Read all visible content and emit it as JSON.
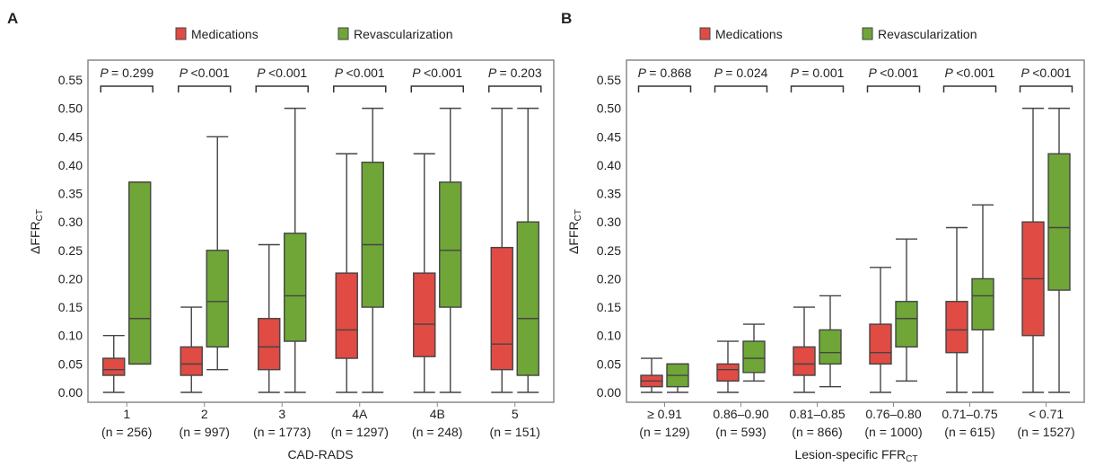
{
  "legend_labels": {
    "medications": "Medications",
    "revascularization": "Revascularization"
  },
  "colors": {
    "medications": "#e04b43",
    "revascularization": "#6fa637",
    "outline": "#444444",
    "frame": "#888888"
  },
  "chart_data": [
    {
      "panel": "A",
      "type": "box",
      "xlabel": "CAD-RADS",
      "ylabel": "ΔFFR",
      "ylabel_sub": "CT",
      "ylim": [
        0,
        0.55
      ],
      "yticks": [
        "0.00",
        "0.05",
        "0.10",
        "0.15",
        "0.20",
        "0.25",
        "0.30",
        "0.35",
        "0.40",
        "0.45",
        "0.50",
        "0.55"
      ],
      "legend": "top",
      "grid": false,
      "categories": [
        {
          "label": "1",
          "n": "(n = 256)",
          "p": "= 0.299"
        },
        {
          "label": "2",
          "n": "(n = 997)",
          "p": "<0.001"
        },
        {
          "label": "3",
          "n": "(n = 1773)",
          "p": "<0.001"
        },
        {
          "label": "4A",
          "n": "(n = 1297)",
          "p": "<0.001"
        },
        {
          "label": "4B",
          "n": "(n = 248)",
          "p": "<0.001"
        },
        {
          "label": "5",
          "n": "(n = 151)",
          "p": "= 0.203"
        }
      ],
      "series": [
        {
          "name": "Medications",
          "boxes": [
            {
              "min": 0.0,
              "q1": 0.03,
              "median": 0.04,
              "q3": 0.06,
              "max": 0.1
            },
            {
              "min": 0.0,
              "q1": 0.03,
              "median": 0.05,
              "q3": 0.08,
              "max": 0.15
            },
            {
              "min": 0.0,
              "q1": 0.04,
              "median": 0.08,
              "q3": 0.13,
              "max": 0.26
            },
            {
              "min": 0.0,
              "q1": 0.06,
              "median": 0.11,
              "q3": 0.21,
              "max": 0.42
            },
            {
              "min": 0.0,
              "q1": 0.063,
              "median": 0.12,
              "q3": 0.21,
              "max": 0.42
            },
            {
              "min": 0.0,
              "q1": 0.04,
              "median": 0.085,
              "q3": 0.255,
              "max": 0.5
            }
          ]
        },
        {
          "name": "Revascularization",
          "boxes": [
            {
              "min": 0.05,
              "q1": 0.05,
              "median": 0.13,
              "q3": 0.37,
              "max": 0.37
            },
            {
              "min": 0.04,
              "q1": 0.08,
              "median": 0.16,
              "q3": 0.25,
              "max": 0.45
            },
            {
              "min": 0.0,
              "q1": 0.09,
              "median": 0.17,
              "q3": 0.28,
              "max": 0.5
            },
            {
              "min": 0.0,
              "q1": 0.15,
              "median": 0.26,
              "q3": 0.405,
              "max": 0.5
            },
            {
              "min": 0.0,
              "q1": 0.15,
              "median": 0.25,
              "q3": 0.37,
              "max": 0.5
            },
            {
              "min": 0.0,
              "q1": 0.03,
              "median": 0.13,
              "q3": 0.3,
              "max": 0.5
            }
          ]
        }
      ]
    },
    {
      "panel": "B",
      "type": "box",
      "xlabel": "Lesion-specific FFR",
      "xlabel_sub": "CT",
      "ylabel": "ΔFFR",
      "ylabel_sub": "CT",
      "ylim": [
        0,
        0.55
      ],
      "yticks": [
        "0.00",
        "0.05",
        "0.10",
        "0.15",
        "0.20",
        "0.25",
        "0.30",
        "0.35",
        "0.40",
        "0.45",
        "0.50",
        "0.55"
      ],
      "legend": "top",
      "grid": false,
      "categories": [
        {
          "label": "≥ 0.91",
          "n": "(n = 129)",
          "p": "= 0.868"
        },
        {
          "label": "0.86–0.90",
          "n": "(n = 593)",
          "p": "= 0.024"
        },
        {
          "label": "0.81–0.85",
          "n": "(n = 866)",
          "p": "= 0.001"
        },
        {
          "label": "0.76–0.80",
          "n": "(n = 1000)",
          "p": "<0.001"
        },
        {
          "label": "0.71–0.75",
          "n": "(n = 615)",
          "p": "<0.001"
        },
        {
          "label": "< 0.71",
          "n": "(n = 1527)",
          "p": "<0.001"
        }
      ],
      "series": [
        {
          "name": "Medications",
          "boxes": [
            {
              "min": 0.0,
              "q1": 0.01,
              "median": 0.02,
              "q3": 0.03,
              "max": 0.06
            },
            {
              "min": 0.0,
              "q1": 0.02,
              "median": 0.04,
              "q3": 0.05,
              "max": 0.09
            },
            {
              "min": 0.0,
              "q1": 0.03,
              "median": 0.05,
              "q3": 0.08,
              "max": 0.15
            },
            {
              "min": 0.0,
              "q1": 0.05,
              "median": 0.07,
              "q3": 0.12,
              "max": 0.22
            },
            {
              "min": 0.0,
              "q1": 0.07,
              "median": 0.11,
              "q3": 0.16,
              "max": 0.29
            },
            {
              "min": 0.0,
              "q1": 0.1,
              "median": 0.2,
              "q3": 0.3,
              "max": 0.5
            }
          ]
        },
        {
          "name": "Revascularization",
          "boxes": [
            {
              "min": 0.0,
              "q1": 0.01,
              "median": 0.03,
              "q3": 0.05,
              "max": 0.05
            },
            {
              "min": 0.02,
              "q1": 0.035,
              "median": 0.06,
              "q3": 0.09,
              "max": 0.12
            },
            {
              "min": 0.01,
              "q1": 0.05,
              "median": 0.07,
              "q3": 0.11,
              "max": 0.17
            },
            {
              "min": 0.02,
              "q1": 0.08,
              "median": 0.13,
              "q3": 0.16,
              "max": 0.27
            },
            {
              "min": 0.0,
              "q1": 0.11,
              "median": 0.17,
              "q3": 0.2,
              "max": 0.33
            },
            {
              "min": 0.0,
              "q1": 0.18,
              "median": 0.29,
              "q3": 0.42,
              "max": 0.5
            }
          ]
        }
      ]
    }
  ]
}
